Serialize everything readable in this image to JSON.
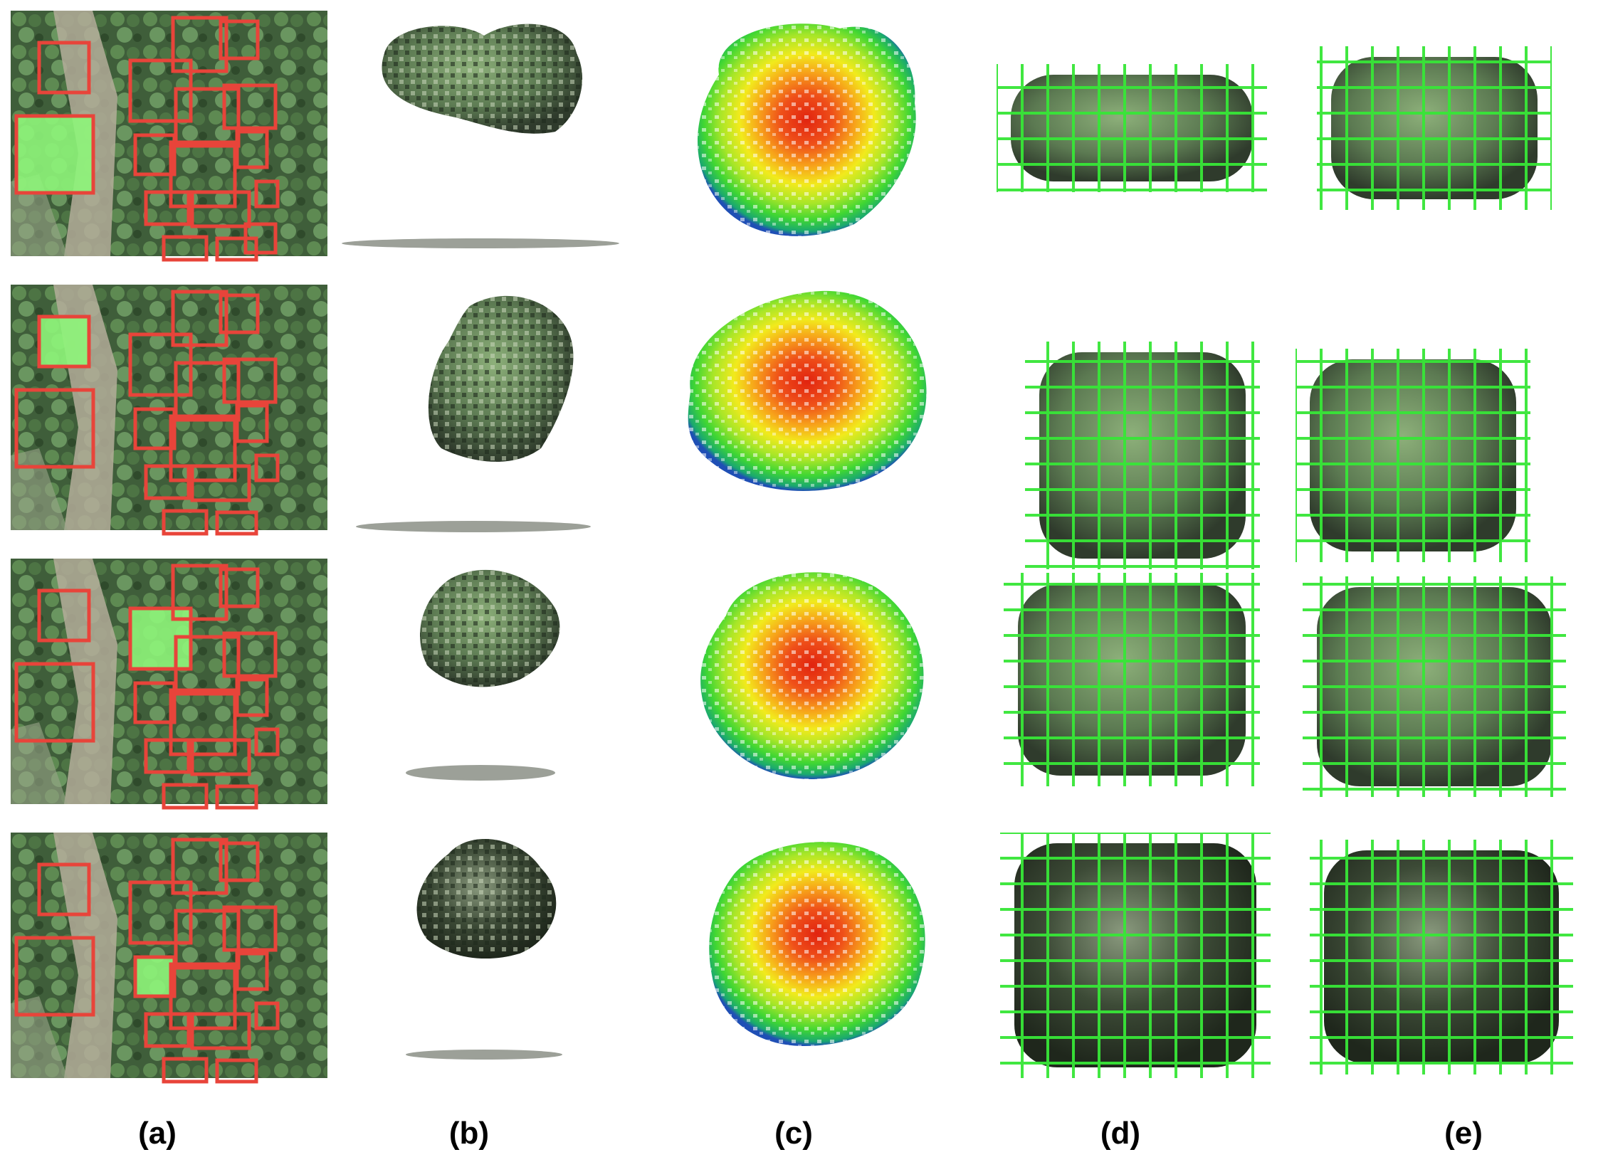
{
  "figure": {
    "panel_labels": [
      "(a)",
      "(b)",
      "(c)",
      "(d)",
      "(e)"
    ],
    "row_count": 4,
    "colors": {
      "selection_box": "#e8443a",
      "highlight": "#8ef57a",
      "voxel_box": "#37e637",
      "ground": "#8b8f86",
      "foliage_light": "#7fa56a",
      "foliage_dark": "#2f3b2c"
    },
    "height_colormap": [
      "#1f4fb5",
      "#1aa870",
      "#3fd633",
      "#a8e628",
      "#f2ea1c",
      "#f7a21a",
      "#ef5019",
      "#e1230f"
    ]
  }
}
